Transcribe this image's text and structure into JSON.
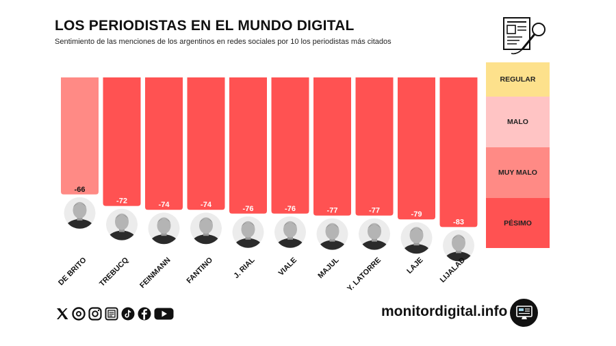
{
  "header": {
    "title": "LOS PERIODISTAS EN EL MUNDO DIGITAL",
    "subtitle": "Sentimiento de las menciones de los argentinos en redes sociales por 10 los periodistas más citados",
    "icon": "newspaper-microphone-icon"
  },
  "chart_data": {
    "type": "bar",
    "title": "LOS PERIODISTAS EN EL MUNDO DIGITAL",
    "subtitle": "Sentimiento de las menciones de los argentinos en redes sociales por 10 los periodistas más citados",
    "categories": [
      "DE BRITO",
      "TREBUCQ",
      "FEINMANN",
      "FANTINO",
      "J. RIAL",
      "VIALE",
      "MAJUL",
      "Y. LATORRE",
      "LAJE",
      "LIJALAD"
    ],
    "values": [
      -66,
      -72,
      -74,
      -74,
      -76,
      -76,
      -77,
      -77,
      -79,
      -83
    ],
    "value_labels": [
      "-66",
      "-72",
      "-74",
      "-74",
      "-76",
      "-76",
      "-77",
      "-77",
      "-79",
      "-83"
    ],
    "bar_colors": [
      "#ff8a85",
      "#ff5252",
      "#ff5252",
      "#ff5252",
      "#ff5252",
      "#ff5252",
      "#ff5252",
      "#ff5252",
      "#ff5252",
      "#ff5252"
    ],
    "ylim": [
      -100,
      0
    ],
    "bars_hang_from_top": true,
    "grid": false,
    "legend_placement": "right",
    "xlabel": "",
    "ylabel": ""
  },
  "legend": {
    "items": [
      {
        "label": "REGULAR",
        "color": "#fde18c"
      },
      {
        "label": "MALO",
        "color": "#ffc4c4"
      },
      {
        "label": "MUY MALO",
        "color": "#ff8a85"
      },
      {
        "label": "PÉSIMO",
        "color": "#ff5252"
      }
    ]
  },
  "footer": {
    "social_icons": [
      "x-icon",
      "threads-icon",
      "instagram-icon",
      "newsletter-icon",
      "tiktok-icon",
      "facebook-icon",
      "youtube-icon"
    ],
    "site": "monitordigital.info",
    "site_icon": "monitor-icon"
  }
}
